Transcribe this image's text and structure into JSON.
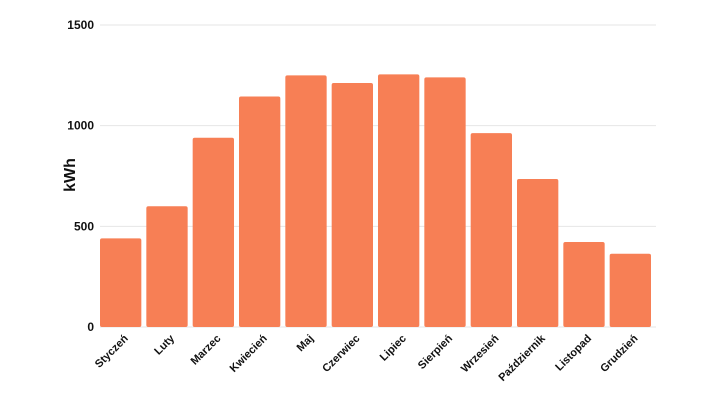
{
  "chart_data": {
    "type": "bar",
    "title": "",
    "xlabel": "",
    "ylabel": "kWh",
    "ylim": [
      0,
      1500
    ],
    "yticks": [
      0,
      500,
      1000,
      1500
    ],
    "grid": true,
    "bar_color": "#F77F55",
    "categories": [
      "Styczeń",
      "Luty",
      "Marzec",
      "Kwiecień",
      "Maj",
      "Czerwiec",
      "Lipiec",
      "Sierpień",
      "Wrzesień",
      "Październik",
      "Listopad",
      "Grudzień"
    ],
    "values": [
      440,
      600,
      940,
      1145,
      1250,
      1212,
      1255,
      1240,
      963,
      735,
      422,
      364
    ]
  }
}
